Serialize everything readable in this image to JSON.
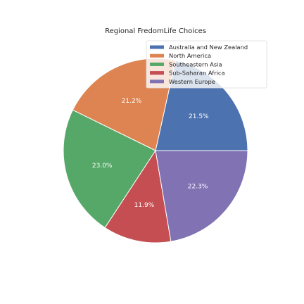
{
  "chart_data": {
    "type": "pie",
    "title": "Regional FredomLife Choices",
    "categories": [
      "Australia and New Zealand",
      "North America",
      "Southeastern Asia",
      "Sub-Saharan Africa",
      "Western Europe"
    ],
    "values": [
      21.5,
      21.2,
      23.0,
      11.9,
      22.3
    ],
    "value_labels": [
      "21.5%",
      "21.2%",
      "23.0%",
      "11.9%",
      "22.3%"
    ],
    "colors": [
      "#4c72b0",
      "#dd8452",
      "#55a868",
      "#c44e52",
      "#8172b3"
    ],
    "start_angle_deg": 0,
    "direction": "counterclockwise",
    "legend_position": "upper right",
    "grid": false
  }
}
